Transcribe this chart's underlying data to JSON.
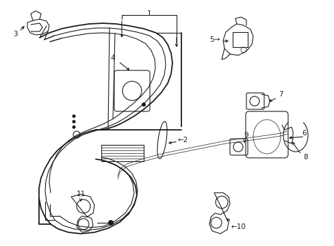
{
  "bg_color": "#ffffff",
  "line_color": "#1a1a1a",
  "lw_main": 1.3,
  "lw_thin": 0.8,
  "lw_hair": 0.5,
  "figsize": [
    4.89,
    3.6
  ],
  "dpi": 100,
  "label_fs": 7.5
}
